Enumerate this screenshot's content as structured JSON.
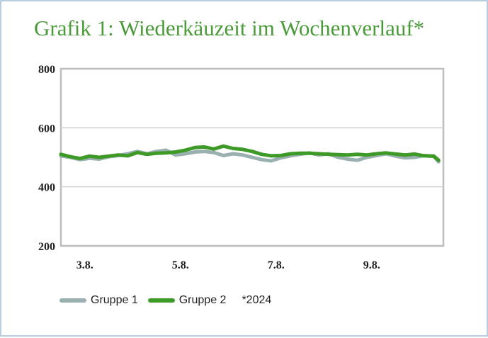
{
  "title": "Grafik 1: Wiederkäuzeit im Wochenverlauf*",
  "colors": {
    "title": "#4a9a3a",
    "gruppe1": "#9ab0b0",
    "gruppe2": "#3d9a26",
    "grid": "#cfcfcf",
    "axis": "#bdbdbd"
  },
  "legend": {
    "note": "*2024"
  },
  "chart_data": {
    "type": "line",
    "title": "Grafik 1: Wiederkäuzeit im Wochenverlauf*",
    "xlabel": "",
    "ylabel": "",
    "ylim": [
      200,
      800
    ],
    "yticks": [
      "200",
      "400",
      "600",
      "800"
    ],
    "xlim": [
      2.5,
      10.5
    ],
    "xticks": [
      {
        "pos": 3.0,
        "label": "3.8."
      },
      {
        "pos": 5.0,
        "label": "5.8."
      },
      {
        "pos": 7.0,
        "label": "7.8."
      },
      {
        "pos": 9.0,
        "label": "9.8."
      }
    ],
    "grid": true,
    "legend_position": "bottom-left",
    "series": [
      {
        "name": "Gruppe 1",
        "x": [
          2.5,
          2.7,
          2.9,
          3.1,
          3.3,
          3.5,
          3.7,
          3.9,
          4.1,
          4.3,
          4.5,
          4.7,
          4.9,
          5.1,
          5.3,
          5.5,
          5.7,
          5.9,
          6.1,
          6.3,
          6.5,
          6.7,
          6.9,
          7.1,
          7.3,
          7.5,
          7.7,
          7.9,
          8.1,
          8.3,
          8.5,
          8.7,
          8.9,
          9.1,
          9.3,
          9.5,
          9.7,
          9.9,
          10.1,
          10.3,
          10.4
        ],
        "y": [
          505,
          500,
          492,
          497,
          494,
          502,
          506,
          512,
          520,
          512,
          520,
          524,
          508,
          512,
          518,
          520,
          516,
          506,
          512,
          508,
          500,
          492,
          488,
          498,
          505,
          510,
          515,
          508,
          512,
          500,
          494,
          490,
          500,
          506,
          512,
          504,
          498,
          500,
          506,
          503,
          485
        ]
      },
      {
        "name": "Gruppe 2",
        "x": [
          2.5,
          2.7,
          2.9,
          3.1,
          3.3,
          3.5,
          3.7,
          3.9,
          4.1,
          4.3,
          4.5,
          4.7,
          4.9,
          5.1,
          5.3,
          5.5,
          5.7,
          5.9,
          6.1,
          6.3,
          6.5,
          6.7,
          6.9,
          7.1,
          7.3,
          7.5,
          7.7,
          7.9,
          8.1,
          8.3,
          8.5,
          8.7,
          8.9,
          9.1,
          9.3,
          9.5,
          9.7,
          9.9,
          10.1,
          10.3,
          10.4
        ],
        "y": [
          510,
          502,
          496,
          504,
          500,
          504,
          508,
          505,
          516,
          510,
          514,
          515,
          518,
          524,
          533,
          535,
          528,
          538,
          530,
          527,
          520,
          510,
          505,
          506,
          512,
          514,
          514,
          512,
          510,
          509,
          508,
          510,
          508,
          512,
          515,
          511,
          508,
          511,
          505,
          504,
          490
        ]
      }
    ]
  }
}
